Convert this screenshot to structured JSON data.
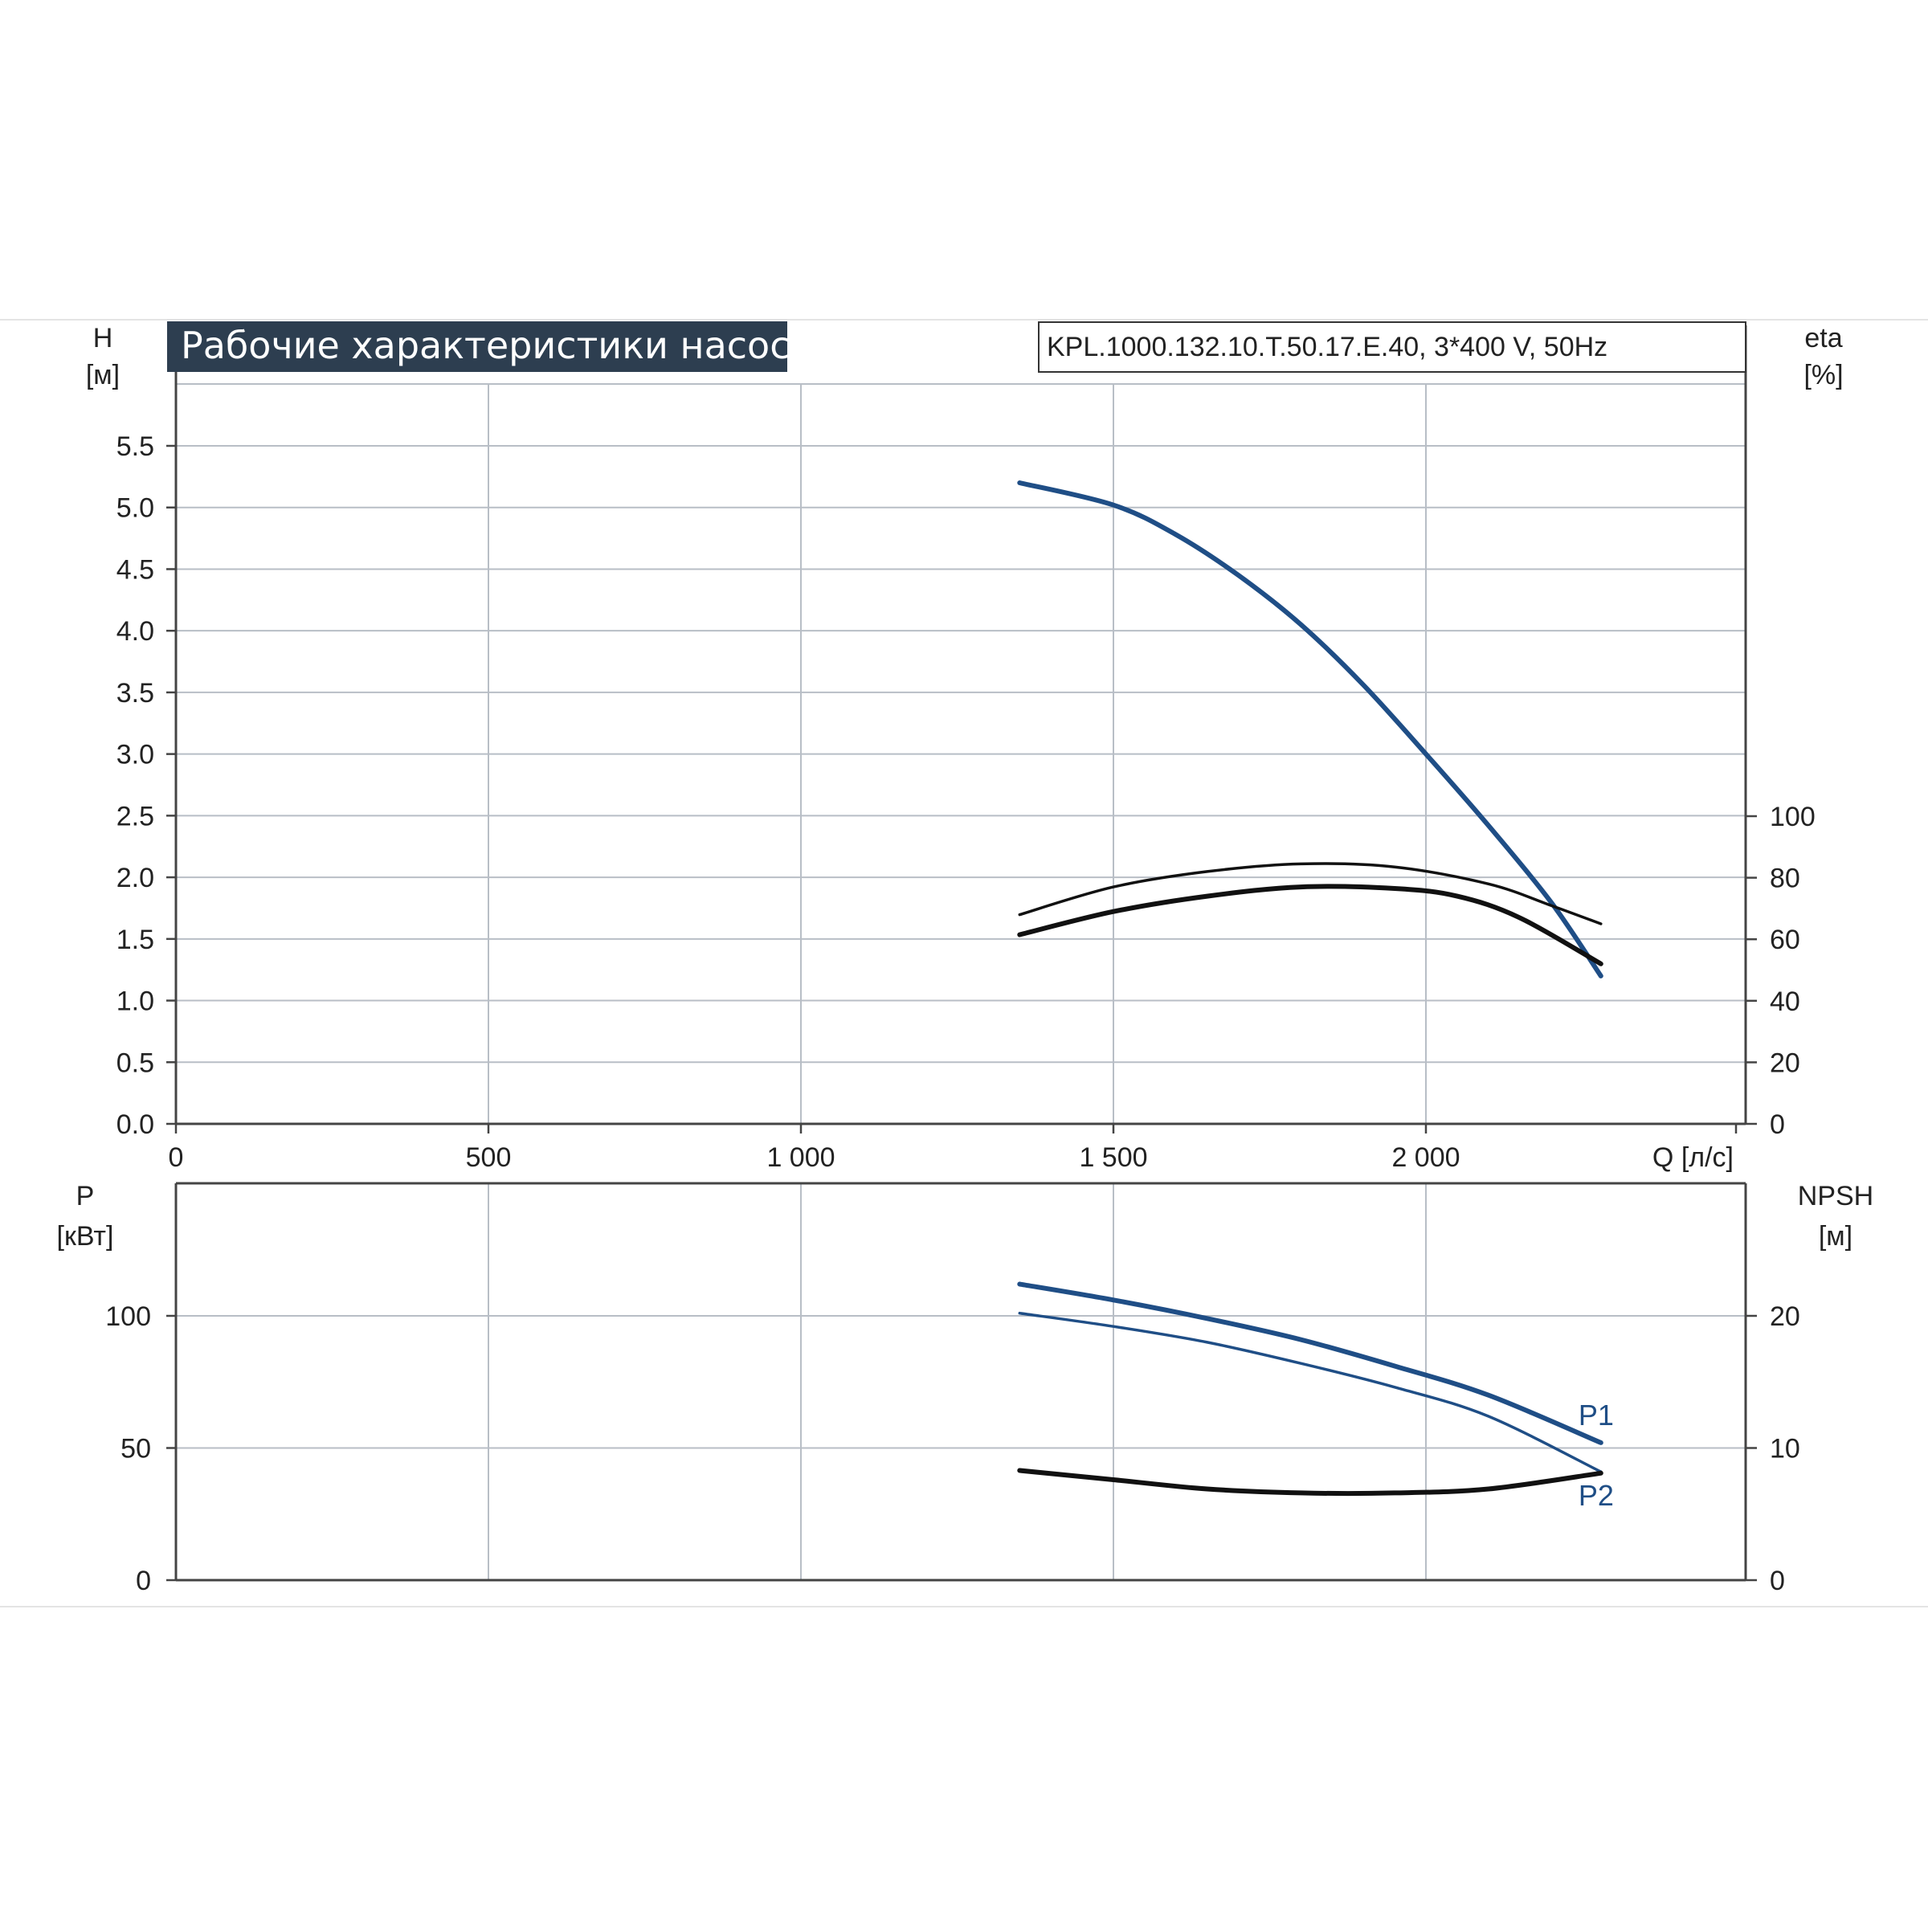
{
  "title": "Рабочие характеристики насоса",
  "model_label": "KPL.1000.132.10.T.50.17.E.40, 3*400 V, 50Hz",
  "colors": {
    "title_bg": "#2d3e50",
    "grid": "#b8bec6",
    "axis": "#444444",
    "blue": "#1f4e86",
    "black": "#111111"
  },
  "chart_data": [
    {
      "type": "line",
      "grid": true,
      "x_axis": {
        "label": "Q [л/с]",
        "range": [
          0,
          2500
        ],
        "ticks": [
          0,
          500,
          1000,
          1500,
          2000
        ],
        "tick_labels": [
          "0",
          "500",
          "1 000",
          "1 500",
          "2 000"
        ]
      },
      "y_left": {
        "label_name": "H",
        "label_unit": "[м]",
        "range": [
          0,
          6
        ],
        "ticks": [
          0,
          0.5,
          1,
          1.5,
          2,
          2.5,
          3,
          3.5,
          4,
          4.5,
          5,
          5.5
        ],
        "tick_labels": [
          "0.0",
          "0.5",
          "1.0",
          "1.5",
          "2.0",
          "2.5",
          "3.0",
          "3.5",
          "4.0",
          "4.5",
          "5.0",
          "5.5"
        ]
      },
      "y_right": {
        "label_name": "eta",
        "label_unit": "[%]",
        "range": [
          0,
          240
        ],
        "ticks": [
          0,
          20,
          40,
          60,
          80,
          100
        ],
        "tick_labels": [
          "0",
          "20",
          "40",
          "60",
          "80",
          "100"
        ]
      },
      "series": [
        {
          "axis": "left",
          "color": "blue",
          "weight": "bold",
          "x": [
            1350,
            1500,
            1600,
            1700,
            1800,
            1900,
            2000,
            2100,
            2200,
            2280
          ],
          "y": [
            5.2,
            5.02,
            4.78,
            4.45,
            4.05,
            3.56,
            3.0,
            2.42,
            1.8,
            1.2
          ]
        },
        {
          "axis": "right",
          "color": "black",
          "weight": "thin",
          "x": [
            1350,
            1500,
            1650,
            1800,
            1950,
            2100,
            2200,
            2280
          ],
          "y": [
            68,
            77,
            82,
            84.5,
            83.5,
            78,
            71,
            65
          ]
        },
        {
          "axis": "right",
          "color": "black",
          "weight": "bold",
          "x": [
            1350,
            1500,
            1650,
            1800,
            1950,
            2050,
            2150,
            2280
          ],
          "y": [
            61.5,
            69,
            74,
            77,
            76.5,
            74,
            67,
            52
          ]
        }
      ]
    },
    {
      "type": "line",
      "grid": true,
      "x_axis": {
        "range": [
          0,
          2500
        ]
      },
      "y_left": {
        "label_name": "P",
        "label_unit": "[кВт]",
        "range": [
          0,
          150
        ],
        "ticks": [
          0,
          50,
          100
        ],
        "tick_labels": [
          "0",
          "50",
          "100"
        ]
      },
      "y_right": {
        "label_name": "NPSH",
        "label_unit": "[м]",
        "range": [
          0,
          30
        ],
        "ticks": [
          0,
          10,
          20
        ],
        "tick_labels": [
          "0",
          "10",
          "20"
        ]
      },
      "series": [
        {
          "name": "P1",
          "axis": "left",
          "color": "blue",
          "weight": "bold",
          "x": [
            1350,
            1500,
            1650,
            1800,
            1950,
            2100,
            2280
          ],
          "y": [
            112,
            106,
            99,
            91,
            81,
            70,
            52
          ]
        },
        {
          "name": "P2",
          "axis": "left",
          "color": "blue",
          "weight": "thin",
          "x": [
            1350,
            1500,
            1650,
            1800,
            1950,
            2100,
            2280
          ],
          "y": [
            101,
            96,
            90,
            82,
            73,
            62,
            41
          ]
        },
        {
          "axis": "right",
          "color": "black",
          "weight": "bold",
          "x": [
            1350,
            1500,
            1650,
            1800,
            1950,
            2100,
            2280
          ],
          "y": [
            8.3,
            7.6,
            6.9,
            6.6,
            6.6,
            6.9,
            8.1
          ]
        }
      ]
    }
  ]
}
